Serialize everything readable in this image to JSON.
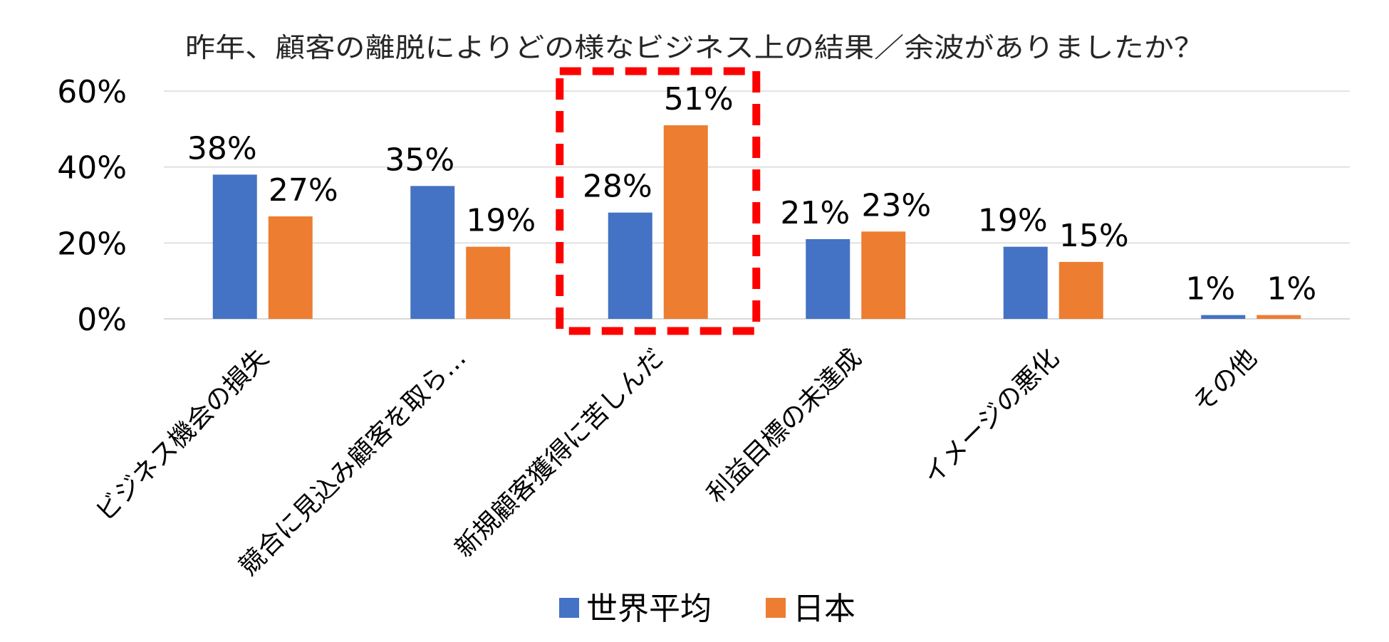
{
  "chart_data": {
    "type": "bar",
    "title": "昨年、顧客の離脱によりどの様なビジネス上の結果／余波がありましたか？",
    "categories": [
      "ビジネス機会の損失",
      "競合に見込み顧客を取ら…",
      "新規顧客獲得に苦しんだ",
      "利益目標の未達成",
      "イメージの悪化",
      "その他"
    ],
    "series": [
      {
        "name": "世界平均",
        "color": "#4472C4",
        "values": [
          38,
          35,
          28,
          21,
          19,
          1
        ],
        "labels": [
          "38%",
          "35%",
          "28%",
          "21%",
          "19%",
          "1%"
        ]
      },
      {
        "name": "日本",
        "color": "#ED7D31",
        "values": [
          27,
          19,
          51,
          23,
          15,
          1
        ],
        "labels": [
          "27%",
          "19%",
          "51%",
          "23%",
          "15%",
          "1%"
        ]
      }
    ],
    "ylim": [
      0,
      60
    ],
    "yticks": [
      0,
      20,
      40,
      60
    ],
    "ytick_labels": [
      "0%",
      "20%",
      "40%",
      "60%"
    ],
    "xlabel": "",
    "ylabel": "",
    "grid": true,
    "legend_position": "bottom-center",
    "highlight": {
      "category_index": 2,
      "style": "dashed-box",
      "color": "#FF0000"
    },
    "colors": {
      "gridline": "#D9D9D9",
      "axis": "#D9D9D9",
      "text": "#000000",
      "title_text": "#262626"
    }
  }
}
